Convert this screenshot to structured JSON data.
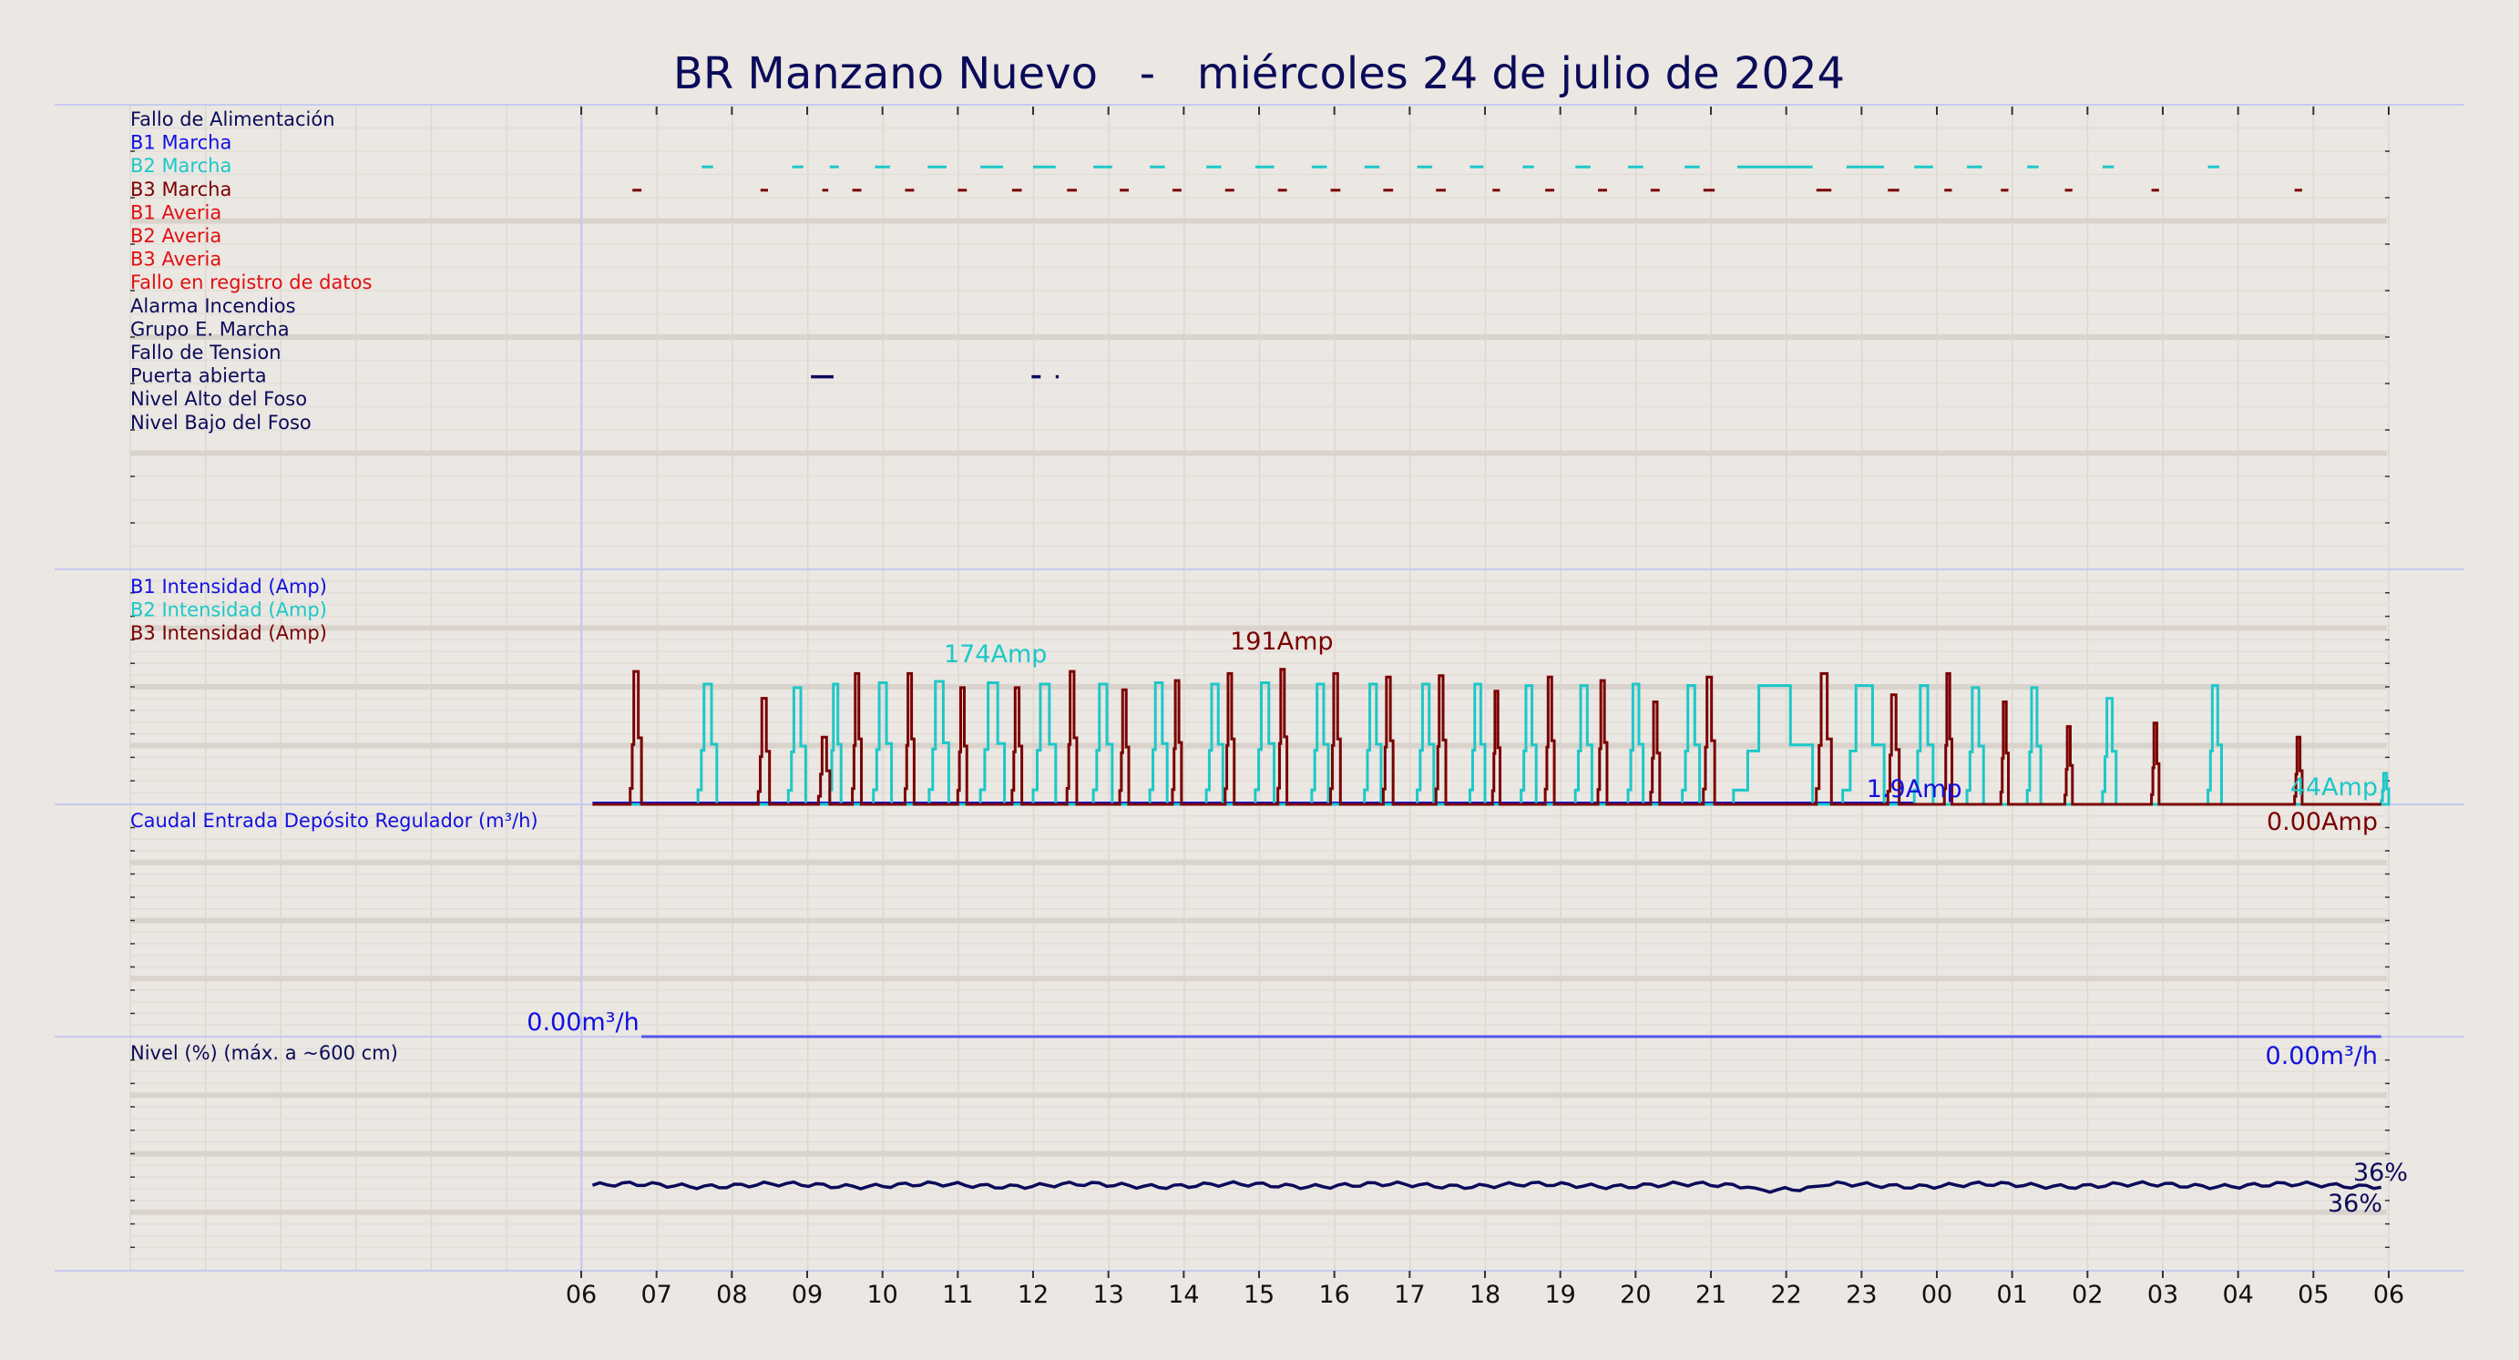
{
  "chart_data": {
    "type": "line",
    "title": "BR Manzano Nuevo   -   miércoles 24 de julio de 2024",
    "x_tick_labels": [
      "06",
      "07",
      "08",
      "09",
      "10",
      "11",
      "12",
      "13",
      "14",
      "15",
      "16",
      "17",
      "18",
      "19",
      "20",
      "21",
      "22",
      "23",
      "00",
      "01",
      "02",
      "03",
      "04",
      "05",
      "06"
    ],
    "x_range_hours": [
      6,
      30
    ],
    "grid": true,
    "colors": {
      "background": "#ebe7e2",
      "navy": "#0b0b5a",
      "blue": "#1010e0",
      "cyan": "#1cc8c8",
      "maroon": "#7a0000",
      "red": "#e01010",
      "flow_line": "#5555ee"
    },
    "panels": [
      {
        "id": "events",
        "type": "event_timeline",
        "labels": [
          {
            "text": "Fallo de Alimentación",
            "color": "#0b0b5a"
          },
          {
            "text": "B1 Marcha",
            "color": "#1010e0"
          },
          {
            "text": "B2 Marcha",
            "color": "#1cc8c8"
          },
          {
            "text": "B3 Marcha",
            "color": "#7a0000"
          },
          {
            "text": "B1 Averia",
            "color": "#e01010"
          },
          {
            "text": "B2 Averia",
            "color": "#e01010"
          },
          {
            "text": "B3 Averia",
            "color": "#e01010"
          },
          {
            "text": "Fallo en registro de datos",
            "color": "#e01010"
          },
          {
            "text": "Alarma Incendios",
            "color": "#0b0b5a"
          },
          {
            "text": "Grupo E. Marcha",
            "color": "#0b0b5a"
          },
          {
            "text": "Fallo de Tension",
            "color": "#0b0b5a"
          },
          {
            "text": "Puerta abierta",
            "color": "#0b0b5a"
          },
          {
            "text": "Nivel Alto del Foso",
            "color": "#0b0b5a"
          },
          {
            "text": "Nivel Bajo del Foso",
            "color": "#0b0b5a"
          }
        ],
        "events": {
          "B2 Marcha": [
            [
              7.6,
              7.75
            ],
            [
              8.8,
              8.95
            ],
            [
              9.3,
              9.42
            ],
            [
              9.9,
              10.1
            ],
            [
              10.6,
              10.85
            ],
            [
              11.3,
              11.6
            ],
            [
              12.0,
              12.3
            ],
            [
              12.8,
              13.05
            ],
            [
              13.55,
              13.75
            ],
            [
              14.3,
              14.5
            ],
            [
              14.95,
              15.2
            ],
            [
              15.7,
              15.9
            ],
            [
              16.4,
              16.6
            ],
            [
              17.1,
              17.3
            ],
            [
              17.8,
              17.98
            ],
            [
              18.5,
              18.65
            ],
            [
              19.2,
              19.4
            ],
            [
              19.9,
              20.1
            ],
            [
              20.65,
              20.85
            ],
            [
              21.35,
              22.35
            ],
            [
              22.8,
              23.3
            ],
            [
              23.7,
              23.95
            ],
            [
              24.4,
              24.6
            ],
            [
              25.2,
              25.35
            ],
            [
              26.2,
              26.35
            ],
            [
              27.6,
              27.75
            ]
          ],
          "B3 Marcha": [
            [
              6.68,
              6.8
            ],
            [
              8.38,
              8.48
            ],
            [
              9.2,
              9.28
            ],
            [
              9.6,
              9.72
            ],
            [
              10.3,
              10.42
            ],
            [
              11.0,
              11.12
            ],
            [
              11.72,
              11.85
            ],
            [
              12.45,
              12.58
            ],
            [
              13.15,
              13.27
            ],
            [
              13.85,
              13.97
            ],
            [
              14.55,
              14.67
            ],
            [
              15.25,
              15.37
            ],
            [
              15.95,
              16.08
            ],
            [
              16.65,
              16.78
            ],
            [
              17.35,
              17.48
            ],
            [
              18.1,
              18.2
            ],
            [
              18.8,
              18.92
            ],
            [
              19.5,
              19.62
            ],
            [
              20.2,
              20.32
            ],
            [
              20.9,
              21.05
            ],
            [
              22.4,
              22.6
            ],
            [
              23.35,
              23.5
            ],
            [
              24.1,
              24.2
            ],
            [
              24.85,
              24.95
            ],
            [
              25.7,
              25.8
            ],
            [
              26.85,
              26.95
            ],
            [
              28.75,
              28.85
            ]
          ],
          "Puerta abierta": [
            [
              9.05,
              9.35
            ],
            [
              11.98,
              12.1
            ],
            [
              12.3,
              12.34
            ]
          ]
        }
      },
      {
        "id": "currents",
        "type": "step",
        "labels": [
          {
            "text": "B1 Intensidad (Amp)",
            "color": "#1010e0"
          },
          {
            "text": "B2 Intensidad (Amp)",
            "color": "#1cc8c8"
          },
          {
            "text": "B3 Intensidad (Amp)",
            "color": "#7a0000"
          }
        ],
        "ylim": [
          0,
          210
        ],
        "annotations": [
          {
            "text": "174Amp",
            "color": "#1cc8c8",
            "hour": 11.5
          },
          {
            "text": "191Amp",
            "color": "#7a0000",
            "hour": 15.3
          },
          {
            "text": "1.9Amp",
            "color": "#1010e0",
            "hour": 23.7
          },
          {
            "text": "44Amp",
            "color": "#1cc8c8",
            "hour": 29.1
          },
          {
            "text": "0.00Amp",
            "color": "#7a0000",
            "hour": 29.1
          }
        ],
        "series": [
          {
            "name": "B1 Intensidad (Amp)",
            "color": "#1010e0",
            "x": [
              6.15,
              23.7
            ],
            "y": [
              1.9,
              1.9
            ]
          },
          {
            "name": "B2 Intensidad (Amp)",
            "color": "#1cc8c8",
            "runs": [
              [
                7.55,
                7.8,
                170
              ],
              [
                8.75,
                8.98,
                165
              ],
              [
                9.3,
                9.45,
                170
              ],
              [
                9.88,
                10.12,
                172
              ],
              [
                10.62,
                10.88,
                174
              ],
              [
                11.3,
                11.62,
                172
              ],
              [
                12.0,
                12.3,
                170
              ],
              [
                12.8,
                13.05,
                170
              ],
              [
                13.55,
                13.78,
                172
              ],
              [
                14.3,
                14.52,
                170
              ],
              [
                14.95,
                15.2,
                172
              ],
              [
                15.7,
                15.92,
                170
              ],
              [
                16.4,
                16.62,
                170
              ],
              [
                17.1,
                17.32,
                170
              ],
              [
                17.8,
                18.0,
                170
              ],
              [
                18.48,
                18.68,
                168
              ],
              [
                19.2,
                19.42,
                168
              ],
              [
                19.9,
                20.1,
                170
              ],
              [
                20.62,
                20.85,
                168
              ],
              [
                21.3,
                22.35,
                168
              ],
              [
                22.75,
                23.3,
                168
              ],
              [
                23.7,
                23.95,
                168
              ],
              [
                24.4,
                24.62,
                165
              ],
              [
                25.2,
                25.38,
                165
              ],
              [
                26.2,
                26.38,
                150
              ],
              [
                27.6,
                27.78,
                168
              ],
              [
                29.9,
                30.0,
                44
              ]
            ]
          },
          {
            "name": "B3 Intensidad (Amp)",
            "color": "#7a0000",
            "runs": [
              [
                6.65,
                6.8,
                188
              ],
              [
                8.35,
                8.5,
                150
              ],
              [
                9.15,
                9.3,
                95
              ],
              [
                9.6,
                9.72,
                185
              ],
              [
                10.3,
                10.42,
                185
              ],
              [
                11.0,
                11.12,
                165
              ],
              [
                11.72,
                11.85,
                165
              ],
              [
                12.45,
                12.58,
                188
              ],
              [
                13.15,
                13.27,
                162
              ],
              [
                13.85,
                13.97,
                175
              ],
              [
                14.55,
                14.67,
                185
              ],
              [
                15.25,
                15.37,
                191
              ],
              [
                15.95,
                16.08,
                185
              ],
              [
                16.65,
                16.78,
                180
              ],
              [
                17.35,
                17.48,
                182
              ],
              [
                18.1,
                18.2,
                160
              ],
              [
                18.8,
                18.92,
                180
              ],
              [
                19.5,
                19.62,
                175
              ],
              [
                20.2,
                20.32,
                145
              ],
              [
                20.9,
                21.05,
                180
              ],
              [
                22.4,
                22.6,
                185
              ],
              [
                23.35,
                23.5,
                155
              ],
              [
                24.1,
                24.2,
                185
              ],
              [
                24.85,
                24.95,
                145
              ],
              [
                25.7,
                25.8,
                110
              ],
              [
                26.85,
                26.95,
                115
              ],
              [
                28.75,
                28.85,
                95
              ]
            ]
          }
        ]
      },
      {
        "id": "flow",
        "type": "line",
        "labels": [
          {
            "text": "Caudal Entrada Depósito Regulador (m³/h)",
            "color": "#1010e0"
          }
        ],
        "annotations": [
          {
            "text": "0.00m³/h",
            "color": "#1010e0",
            "hour": 6.0
          },
          {
            "text": "0.00m³/h",
            "color": "#1010e0",
            "hour": 29.1
          }
        ],
        "series": [
          {
            "name": "Caudal Entrada Depósito Regulador (m³/h)",
            "color": "#5555ee",
            "x": [
              6.8,
              29.9
            ],
            "y": [
              0,
              0
            ]
          }
        ]
      },
      {
        "id": "level",
        "type": "line",
        "labels": [
          {
            "text": "Nivel (%) (máx. a ~600 cm)",
            "color": "#0b0b5a"
          }
        ],
        "ylim": [
          0,
          100
        ],
        "annotations": [
          {
            "text": "36%",
            "color": "#0b0b5a",
            "hour": 29.3
          },
          {
            "text": "36%",
            "color": "#0b0b5a",
            "hour": 29.1
          }
        ],
        "series": [
          {
            "name": "Nivel (%) (máx. a ~600 cm)",
            "color": "#0b0b5a",
            "x": [
              6.15,
              29.9
            ],
            "y": [
              37,
              36
            ]
          }
        ]
      }
    ]
  }
}
